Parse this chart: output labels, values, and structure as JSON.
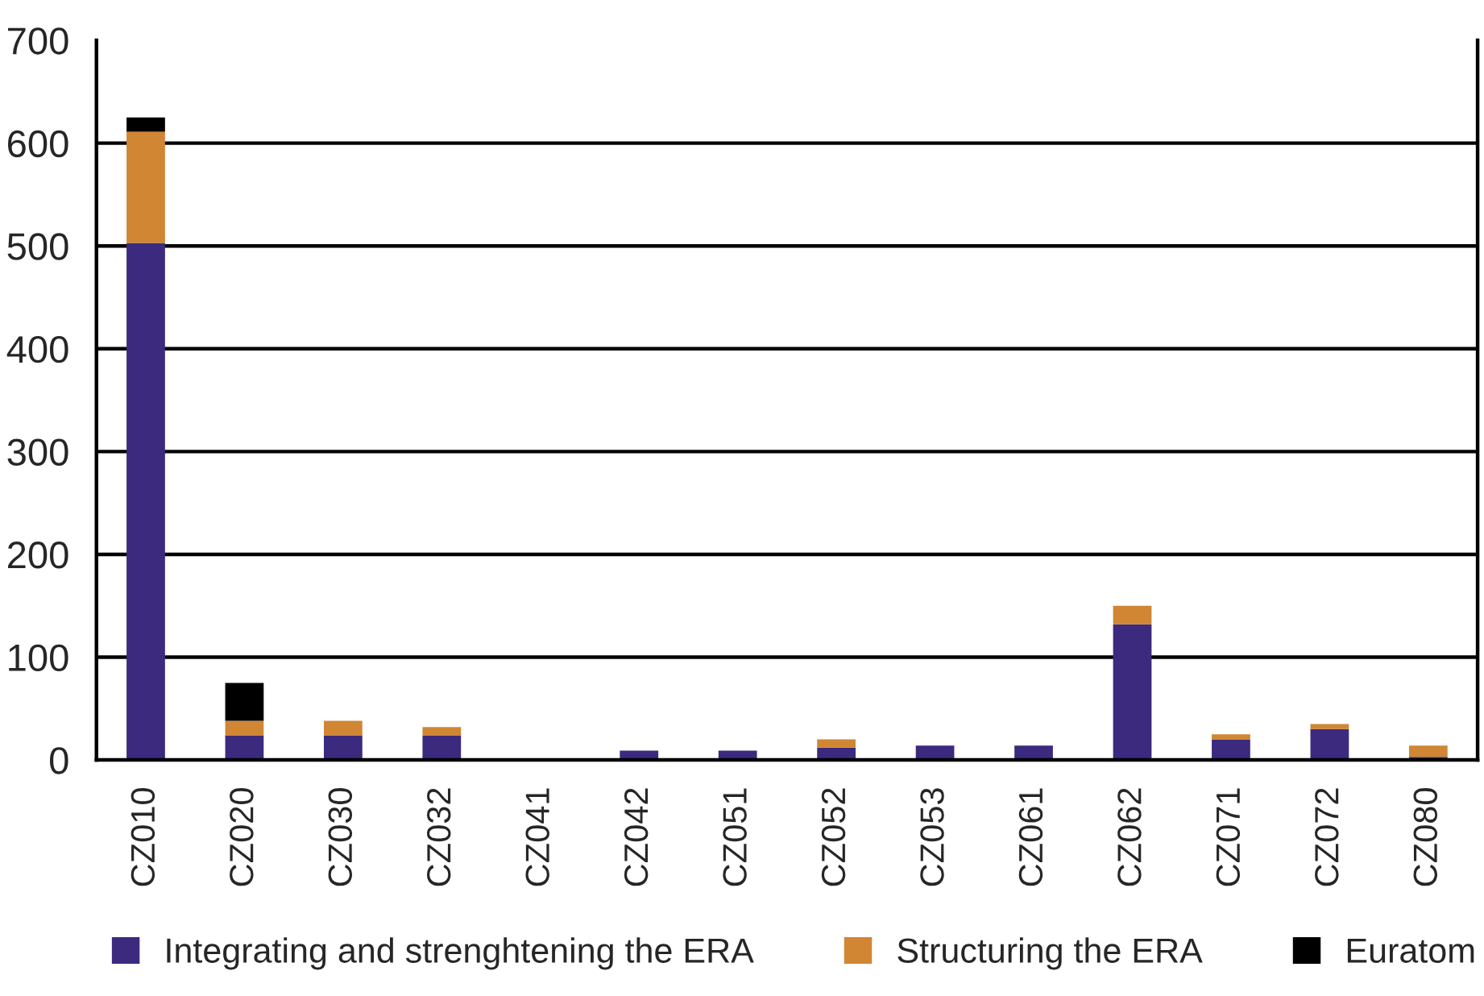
{
  "chart_data": {
    "type": "bar",
    "stacked": true,
    "categories": [
      "CZ010",
      "CZ020",
      "CZ030",
      "CZ032",
      "CZ041",
      "CZ042",
      "CZ051",
      "CZ052",
      "CZ053",
      "CZ061",
      "CZ062",
      "CZ071",
      "CZ072",
      "CZ080"
    ],
    "series": [
      {
        "name": "Integrating and strenghtening the ERA",
        "color": "#3c2a7e",
        "values": [
          503,
          24,
          24,
          24,
          null,
          9,
          9,
          12,
          14,
          14,
          132,
          20,
          30,
          3
        ]
      },
      {
        "name": "Structuring the ERA",
        "color": "#d08633",
        "values": [
          108,
          14,
          14,
          8,
          null,
          null,
          null,
          8,
          null,
          null,
          18,
          5,
          5,
          11
        ]
      },
      {
        "name": "Euratom",
        "color": "#000000",
        "values": [
          14,
          37,
          null,
          null,
          null,
          null,
          null,
          null,
          null,
          null,
          null,
          null,
          null,
          null
        ]
      }
    ],
    "ylim": [
      0,
      700
    ],
    "yticks": [
      0,
      100,
      200,
      300,
      400,
      500,
      600,
      700
    ],
    "grid": "y",
    "legend": "bottom"
  }
}
